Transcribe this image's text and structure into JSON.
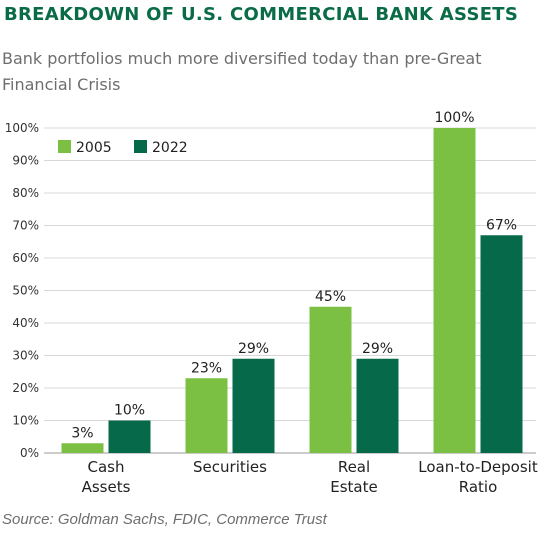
{
  "title": "BREAKDOWN OF U.S. COMMERCIAL BANK ASSETS",
  "subtitle": "Bank portfolios much more diversified today than pre-Great Financial Crisis",
  "source": "Source: Goldman Sachs, FDIC, Commerce Trust",
  "colors": {
    "title": "#0a6b47",
    "series_2005": "#7bc043",
    "series_2022": "#06694a",
    "grid": "#d8d8d8",
    "text": "#222222"
  },
  "chart_data": {
    "type": "bar",
    "categories": [
      [
        "Cash",
        "Assets"
      ],
      [
        "Securities"
      ],
      [
        "Real",
        "Estate"
      ],
      [
        "Loan-to-Deposit",
        "Ratio"
      ]
    ],
    "series": [
      {
        "name": "2005",
        "values": [
          3,
          23,
          45,
          100
        ],
        "labels": [
          "3%",
          "23%",
          "45%",
          "100%"
        ]
      },
      {
        "name": "2022",
        "values": [
          10,
          29,
          29,
          67
        ],
        "labels": [
          "10%",
          "29%",
          "29%",
          "67%"
        ]
      }
    ],
    "yticks": [
      "0%",
      "10%",
      "20%",
      "30%",
      "40%",
      "50%",
      "60%",
      "70%",
      "80%",
      "90%",
      "100%"
    ],
    "ylim": [
      0,
      100
    ],
    "grid": true,
    "legend": "top-left",
    "xlabel": "",
    "ylabel": ""
  }
}
